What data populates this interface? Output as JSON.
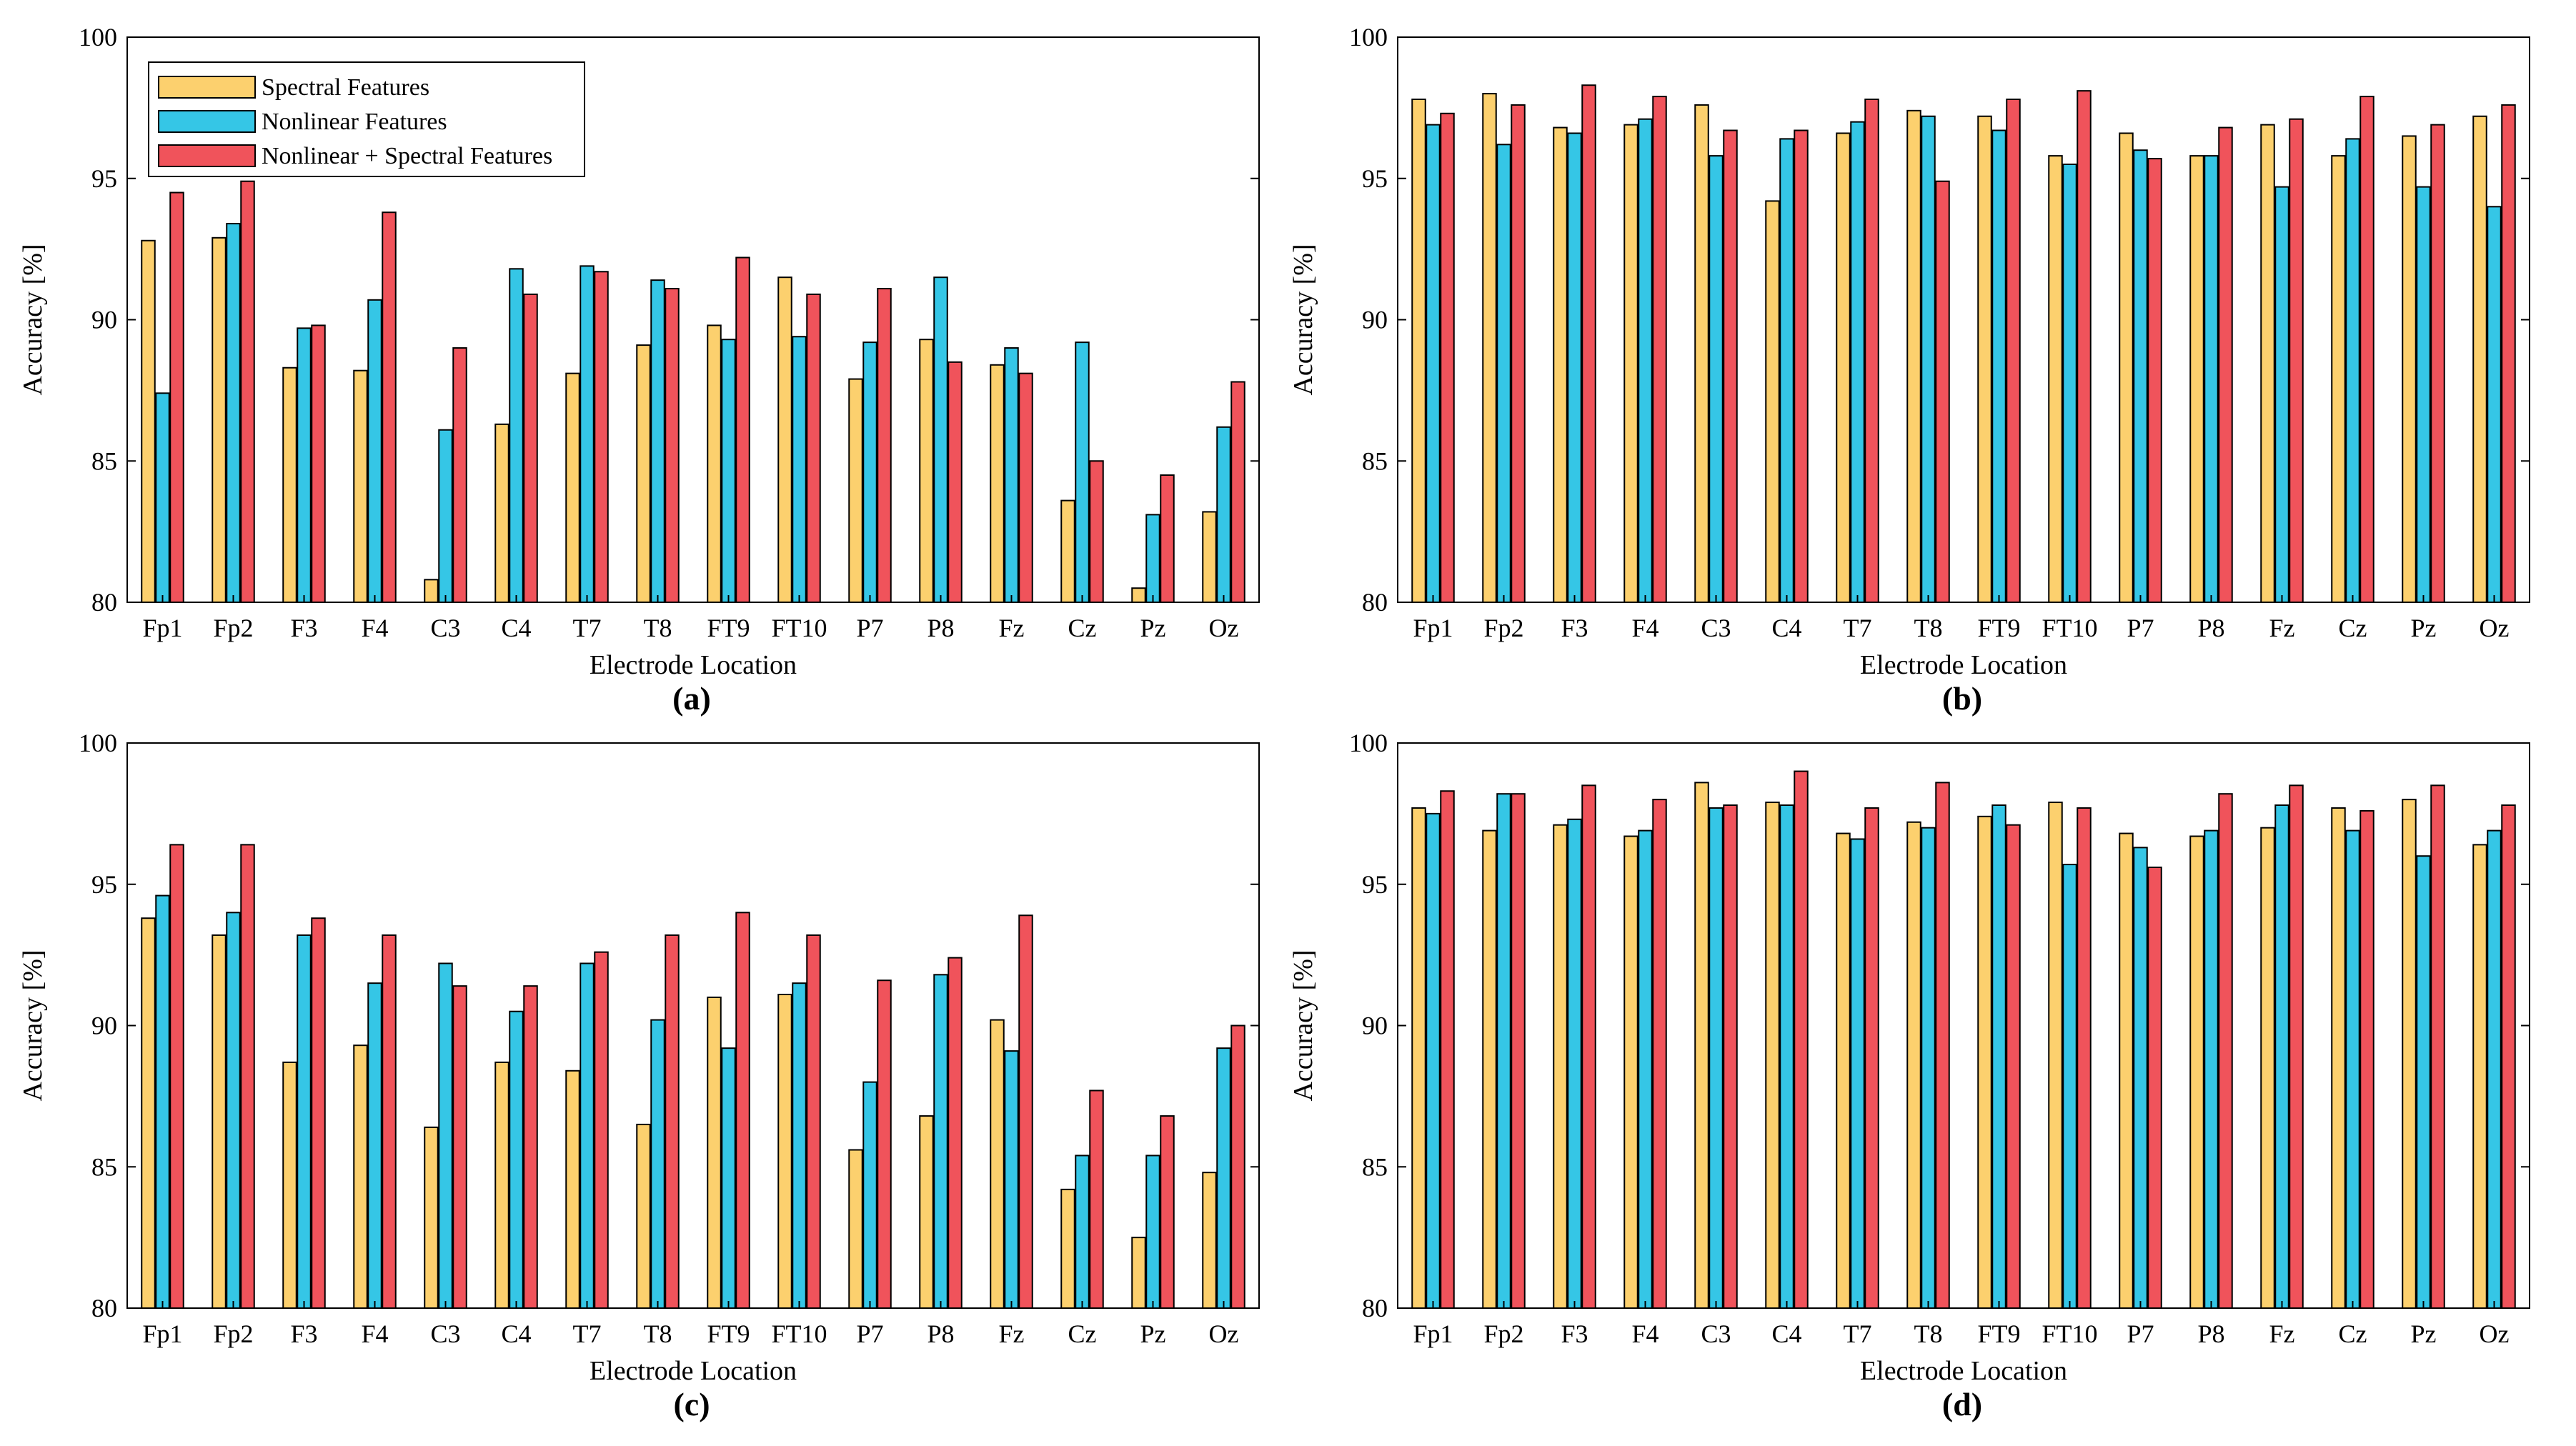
{
  "chart_data": [
    {
      "type": "bar",
      "panel_label": "(a)",
      "xlabel": "Electrode Location",
      "ylabel": "Accuracy [%]",
      "ylim": [
        80,
        100
      ],
      "yticks": [
        80,
        85,
        90,
        95,
        100
      ],
      "categories": [
        "Fp1",
        "Fp2",
        "F3",
        "F4",
        "C3",
        "C4",
        "T7",
        "T8",
        "FT9",
        "FT10",
        "P7",
        "P8",
        "Fz",
        "Cz",
        "Pz",
        "Oz"
      ],
      "legend": "top-left",
      "series": [
        {
          "name": "Spectral Features",
          "values": [
            92.8,
            92.9,
            88.3,
            88.2,
            80.8,
            86.3,
            88.1,
            89.1,
            89.8,
            91.5,
            87.9,
            89.3,
            88.4,
            83.6,
            80.5,
            83.2
          ]
        },
        {
          "name": "Nonlinear Features",
          "values": [
            87.4,
            93.4,
            89.7,
            90.7,
            86.1,
            91.8,
            91.9,
            91.4,
            89.3,
            89.4,
            89.2,
            91.5,
            89.0,
            89.2,
            83.1,
            86.2
          ]
        },
        {
          "name": "Nonlinear + Spectral Features",
          "values": [
            94.5,
            94.9,
            89.8,
            93.8,
            89.0,
            90.9,
            91.7,
            91.1,
            92.2,
            90.9,
            91.1,
            88.5,
            88.1,
            85.0,
            84.5,
            87.8
          ]
        }
      ]
    },
    {
      "type": "bar",
      "panel_label": "(b)",
      "xlabel": "Electrode Location",
      "ylabel": "Accuracy [%]",
      "ylim": [
        80,
        100
      ],
      "yticks": [
        80,
        85,
        90,
        95,
        100
      ],
      "categories": [
        "Fp1",
        "Fp2",
        "F3",
        "F4",
        "C3",
        "C4",
        "T7",
        "T8",
        "FT9",
        "FT10",
        "P7",
        "P8",
        "Fz",
        "Cz",
        "Pz",
        "Oz"
      ],
      "series": [
        {
          "name": "Spectral Features",
          "values": [
            97.8,
            98.0,
            96.8,
            96.9,
            97.6,
            94.2,
            96.6,
            97.4,
            97.2,
            95.8,
            96.6,
            95.8,
            96.9,
            95.8,
            96.5,
            97.2
          ]
        },
        {
          "name": "Nonlinear Features",
          "values": [
            96.9,
            96.2,
            96.6,
            97.1,
            95.8,
            96.4,
            97.0,
            97.2,
            96.7,
            95.5,
            96.0,
            95.8,
            94.7,
            96.4,
            94.7,
            94.0
          ]
        },
        {
          "name": "Nonlinear + Spectral Features",
          "values": [
            97.3,
            97.6,
            98.3,
            97.9,
            96.7,
            96.7,
            97.8,
            94.9,
            97.8,
            98.1,
            95.7,
            96.8,
            97.1,
            97.9,
            96.9,
            97.6
          ]
        }
      ]
    },
    {
      "type": "bar",
      "panel_label": "(c)",
      "xlabel": "Electrode Location",
      "ylabel": "Accuracy [%]",
      "ylim": [
        80,
        100
      ],
      "yticks": [
        80,
        85,
        90,
        95,
        100
      ],
      "categories": [
        "Fp1",
        "Fp2",
        "F3",
        "F4",
        "C3",
        "C4",
        "T7",
        "T8",
        "FT9",
        "FT10",
        "P7",
        "P8",
        "Fz",
        "Cz",
        "Pz",
        "Oz"
      ],
      "series": [
        {
          "name": "Spectral Features",
          "values": [
            93.8,
            93.2,
            88.7,
            89.3,
            86.4,
            88.7,
            88.4,
            86.5,
            91.0,
            91.1,
            85.6,
            86.8,
            90.2,
            84.2,
            82.5,
            84.8
          ]
        },
        {
          "name": "Nonlinear Features",
          "values": [
            94.6,
            94.0,
            93.2,
            91.5,
            92.2,
            90.5,
            92.2,
            90.2,
            89.2,
            91.5,
            88.0,
            91.8,
            89.1,
            85.4,
            85.4,
            89.2
          ]
        },
        {
          "name": "Nonlinear + Spectral Features",
          "values": [
            96.4,
            96.4,
            93.8,
            93.2,
            91.4,
            91.4,
            92.6,
            93.2,
            94.0,
            93.2,
            91.6,
            92.4,
            93.9,
            87.7,
            86.8,
            90.0
          ]
        }
      ]
    },
    {
      "type": "bar",
      "panel_label": "(d)",
      "xlabel": "Electrode Location",
      "ylabel": "Accuracy [%]",
      "ylim": [
        80,
        100
      ],
      "yticks": [
        80,
        85,
        90,
        95,
        100
      ],
      "categories": [
        "Fp1",
        "Fp2",
        "F3",
        "F4",
        "C3",
        "C4",
        "T7",
        "T8",
        "FT9",
        "FT10",
        "P7",
        "P8",
        "Fz",
        "Cz",
        "Pz",
        "Oz"
      ],
      "series": [
        {
          "name": "Spectral Features",
          "values": [
            97.7,
            96.9,
            97.1,
            96.7,
            98.6,
            97.9,
            96.8,
            97.2,
            97.4,
            97.9,
            96.8,
            96.7,
            97.0,
            97.7,
            98.0,
            96.4
          ]
        },
        {
          "name": "Nonlinear Features",
          "values": [
            97.5,
            98.2,
            97.3,
            96.9,
            97.7,
            97.8,
            96.6,
            97.0,
            97.8,
            95.7,
            96.3,
            96.9,
            97.8,
            96.9,
            96.0,
            96.9
          ]
        },
        {
          "name": "Nonlinear + Spectral Features",
          "values": [
            98.3,
            98.2,
            98.5,
            98.0,
            97.8,
            99.0,
            97.7,
            98.6,
            97.1,
            97.7,
            95.6,
            98.2,
            98.5,
            97.6,
            98.5,
            97.8
          ]
        }
      ]
    }
  ],
  "colors": {
    "spectral": "#fcd06e",
    "nonlinear": "#35c6e6",
    "combined": "#f0535b"
  }
}
